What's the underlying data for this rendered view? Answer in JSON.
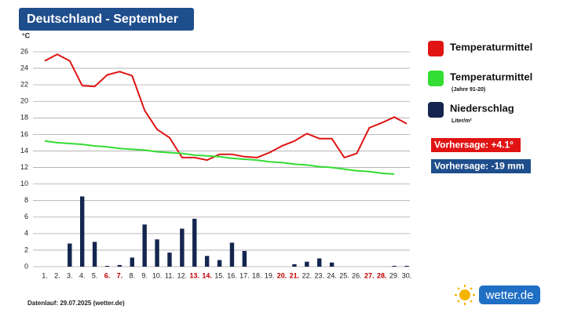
{
  "chart_data": {
    "type": "bar-line",
    "title": "Deutschland - September",
    "y_unit": "°C",
    "categories": [
      "1.",
      "2.",
      "3.",
      "4.",
      "5.",
      "6.",
      "7.",
      "8.",
      "9.",
      "10.",
      "11.",
      "12.",
      "13.",
      "14.",
      "15.",
      "16.",
      "17.",
      "18.",
      "19.",
      "20.",
      "21.",
      "22.",
      "23.",
      "24.",
      "25.",
      "26.",
      "27.",
      "28.",
      "29.",
      "30."
    ],
    "category_colors": [
      "#222",
      "#222",
      "#222",
      "#222",
      "#222",
      "#c00000",
      "#c00000",
      "#222",
      "#222",
      "#222",
      "#222",
      "#222",
      "#c00000",
      "#c00000",
      "#222",
      "#222",
      "#222",
      "#222",
      "#222",
      "#c00000",
      "#c00000",
      "#222",
      "#222",
      "#222",
      "#222",
      "#222",
      "#c00000",
      "#c00000",
      "#222",
      "#222"
    ],
    "ylim": [
      0,
      26
    ],
    "yticks": [
      0,
      2,
      4,
      6,
      8,
      10,
      12,
      14,
      16,
      18,
      20,
      22,
      24,
      26
    ],
    "grid": true,
    "series": [
      {
        "name": "Temperaturmittel",
        "kind": "line",
        "color": "#e01414",
        "values": [
          24.9,
          25.7,
          24.9,
          21.9,
          21.8,
          23.2,
          23.6,
          23.1,
          18.9,
          16.6,
          15.6,
          13.2,
          13.2,
          12.9,
          13.6,
          13.6,
          13.3,
          13.2,
          13.8,
          14.6,
          15.2,
          16.1,
          15.5,
          15.5,
          13.2,
          13.7,
          16.8,
          17.4,
          18.1,
          17.3
        ]
      },
      {
        "name": "Temperaturmittel",
        "legend_note": "(Jahre 91-20)",
        "kind": "line",
        "color": "#33dd33",
        "values": [
          15.2,
          15.0,
          14.9,
          14.8,
          14.6,
          14.5,
          14.3,
          14.2,
          14.1,
          13.9,
          13.8,
          13.7,
          13.5,
          13.4,
          13.3,
          13.1,
          13.0,
          12.9,
          12.7,
          12.6,
          12.4,
          12.3,
          12.1,
          12.0,
          11.8,
          11.6,
          11.5,
          11.3,
          11.2,
          null
        ]
      },
      {
        "name": "Niederschlag",
        "legend_note": "Liter/m²",
        "kind": "bar",
        "color": "#14264f",
        "values": [
          0,
          0,
          2.8,
          8.5,
          3.0,
          0.1,
          0.2,
          1.1,
          5.1,
          3.3,
          1.7,
          4.6,
          5.8,
          1.3,
          0.8,
          2.9,
          1.9,
          0,
          0,
          0,
          0.3,
          0.6,
          1.0,
          0.5,
          0,
          0,
          0,
          0,
          0.1,
          0.1
        ]
      }
    ],
    "annotations": [
      {
        "text": "Vorhersage: +4.1°",
        "color": "#e01414"
      },
      {
        "text": "Vorhersage: -19 mm",
        "color": "#1f4e8c"
      }
    ],
    "footer": "Datenlauf: 29.07.2025 (wetter.de)",
    "logo": "wetter.de"
  }
}
